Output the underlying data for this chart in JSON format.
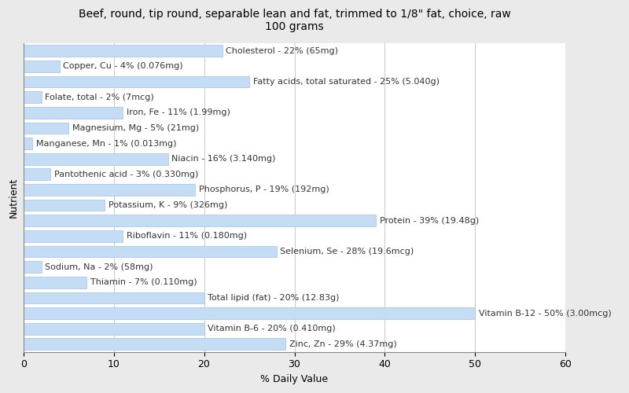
{
  "title": "Beef, round, tip round, separable lean and fat, trimmed to 1/8\" fat, choice, raw\n100 grams",
  "xlabel": "% Daily Value",
  "ylabel": "Nutrient",
  "background_color": "#eaeaea",
  "plot_background": "#ffffff",
  "bar_color": "#c5ddf4",
  "bar_edge_color": "#a0c4e8",
  "nutrients": [
    {
      "label": "Cholesterol - 22% (65mg)",
      "value": 22
    },
    {
      "label": "Copper, Cu - 4% (0.076mg)",
      "value": 4
    },
    {
      "label": "Fatty acids, total saturated - 25% (5.040g)",
      "value": 25
    },
    {
      "label": "Folate, total - 2% (7mcg)",
      "value": 2
    },
    {
      "label": "Iron, Fe - 11% (1.99mg)",
      "value": 11
    },
    {
      "label": "Magnesium, Mg - 5% (21mg)",
      "value": 5
    },
    {
      "label": "Manganese, Mn - 1% (0.013mg)",
      "value": 1
    },
    {
      "label": "Niacin - 16% (3.140mg)",
      "value": 16
    },
    {
      "label": "Pantothenic acid - 3% (0.330mg)",
      "value": 3
    },
    {
      "label": "Phosphorus, P - 19% (192mg)",
      "value": 19
    },
    {
      "label": "Potassium, K - 9% (326mg)",
      "value": 9
    },
    {
      "label": "Protein - 39% (19.48g)",
      "value": 39
    },
    {
      "label": "Riboflavin - 11% (0.180mg)",
      "value": 11
    },
    {
      "label": "Selenium, Se - 28% (19.6mcg)",
      "value": 28
    },
    {
      "label": "Sodium, Na - 2% (58mg)",
      "value": 2
    },
    {
      "label": "Thiamin - 7% (0.110mg)",
      "value": 7
    },
    {
      "label": "Total lipid (fat) - 20% (12.83g)",
      "value": 20
    },
    {
      "label": "Vitamin B-12 - 50% (3.00mcg)",
      "value": 50
    },
    {
      "label": "Vitamin B-6 - 20% (0.410mg)",
      "value": 20
    },
    {
      "label": "Zinc, Zn - 29% (4.37mg)",
      "value": 29
    }
  ],
  "xlim": [
    0,
    60
  ],
  "xticks": [
    0,
    10,
    20,
    30,
    40,
    50,
    60
  ],
  "title_fontsize": 10,
  "axis_label_fontsize": 9,
  "bar_label_fontsize": 8,
  "tick_fontsize": 9,
  "bar_height": 0.75,
  "label_color": "#333333"
}
